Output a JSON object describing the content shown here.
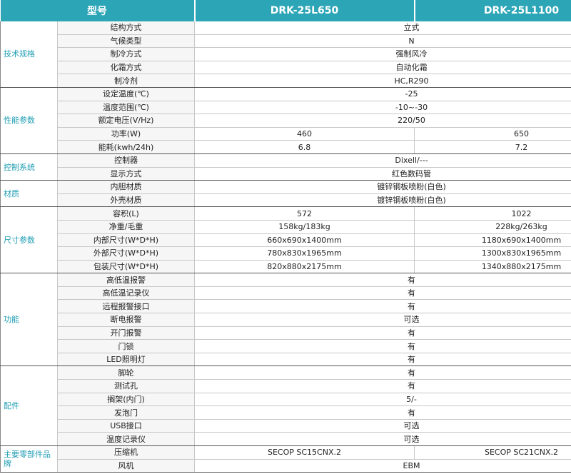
{
  "table": {
    "header": [
      "型号",
      "DRK-25L650",
      "DRK-25L1100"
    ],
    "groups": [
      {
        "label": "技术规格",
        "rows": [
          {
            "item": "结构方式",
            "value": "立式"
          },
          {
            "item": "气候类型",
            "value": "N"
          },
          {
            "item": "制冷方式",
            "value": "强制风冷"
          },
          {
            "item": "化霜方式",
            "value": "自动化霜"
          },
          {
            "item": "制冷剂",
            "value": "HC,R290"
          }
        ]
      },
      {
        "label": "性能参数",
        "rows": [
          {
            "item": "设定温度(℃)",
            "value": "-25"
          },
          {
            "item": "温度范围(℃)",
            "value": "-10~-30"
          },
          {
            "item": "额定电压(V/Hz)",
            "value": "220/50"
          },
          {
            "item": "功率(W)",
            "values": [
              "460",
              "650"
            ]
          },
          {
            "item": "能耗(kwh/24h)",
            "values": [
              "6.8",
              "7.2"
            ]
          }
        ]
      },
      {
        "label": "控制系统",
        "rows": [
          {
            "item": "控制器",
            "value": "Dixell/---"
          },
          {
            "item": "显示方式",
            "value": "红色数码管"
          }
        ]
      },
      {
        "label": "材质",
        "rows": [
          {
            "item": "内胆材质",
            "value": "镀锌钢板喷粉(白色)"
          },
          {
            "item": "外壳材质",
            "value": "镀锌钢板喷粉(白色)"
          }
        ]
      },
      {
        "label": "尺寸参数",
        "rows": [
          {
            "item": "容积(L)",
            "values": [
              "572",
              "1022"
            ]
          },
          {
            "item": "净重/毛重",
            "values": [
              "158kg/183kg",
              "228kg/263kg"
            ]
          },
          {
            "item": "内部尺寸(W*D*H)",
            "values": [
              "660x690x1400mm",
              "1180x690x1400mm"
            ]
          },
          {
            "item": "外部尺寸(W*D*H)",
            "values": [
              "780x830x1965mm",
              "1300x830x1965mm"
            ]
          },
          {
            "item": "包装尺寸(W*D*H)",
            "values": [
              "820x880x2175mm",
              "1340x880x2175mm"
            ]
          }
        ]
      },
      {
        "label": "功能",
        "rows": [
          {
            "item": "高低温报警",
            "value": "有"
          },
          {
            "item": "高低温记录仪",
            "value": "有"
          },
          {
            "item": "远程报警接口",
            "value": "有"
          },
          {
            "item": "断电报警",
            "value": "可选"
          },
          {
            "item": "开门报警",
            "value": "有"
          },
          {
            "item": "门锁",
            "value": "有"
          },
          {
            "item": "LED照明灯",
            "value": "有"
          }
        ]
      },
      {
        "label": "配件",
        "rows": [
          {
            "item": "脚轮",
            "value": "有"
          },
          {
            "item": "测试孔",
            "value": "有"
          },
          {
            "item": "搁架(内门)",
            "value": "5/-"
          },
          {
            "item": "发泡门",
            "value": "有"
          },
          {
            "item": "USB接口",
            "value": "可选"
          },
          {
            "item": "温度记录仪",
            "value": "可选"
          }
        ]
      },
      {
        "label": "主要零部件品牌",
        "rows": [
          {
            "item": "压缩机",
            "values": [
              "SECOP SC15CNX.2",
              "SECOP SC21CNX.2"
            ]
          },
          {
            "item": "风机",
            "value": "EBM"
          }
        ]
      }
    ]
  }
}
